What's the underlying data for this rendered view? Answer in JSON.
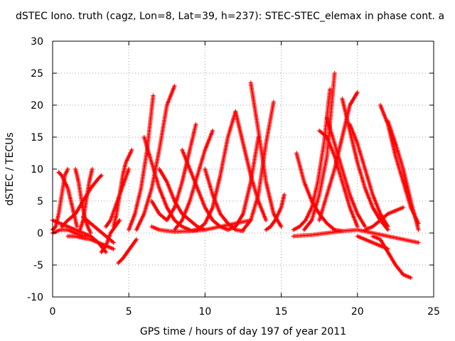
{
  "chart_data": {
    "type": "scatter",
    "title": "dSTEC Iono. truth (cagz, Lon=8, Lat=39, h=237): STEC-STEC_elemax in phase cont. a",
    "xlabel": "GPS time / hours of day 197 of year 2011",
    "ylabel": "dSTEC  / TECUs",
    "xlim": [
      0,
      25
    ],
    "ylim": [
      -10,
      30
    ],
    "xticks": [
      0,
      5,
      10,
      15,
      20,
      25
    ],
    "yticks": [
      -10,
      -5,
      0,
      5,
      10,
      15,
      20,
      25,
      30
    ],
    "grid": true,
    "marker": "plus",
    "color": "#ff0000",
    "series": [
      {
        "x": [
          0.0,
          0.2,
          0.4,
          0.6,
          0.8,
          1.0
        ],
        "y": [
          0.5,
          1.0,
          3.0,
          6.0,
          9.0,
          10.0
        ]
      },
      {
        "x": [
          0.4,
          0.6,
          0.8,
          1.0,
          1.2,
          1.4,
          1.6
        ],
        "y": [
          9.5,
          9.0,
          8.0,
          7.0,
          5.0,
          3.0,
          1.0
        ]
      },
      {
        "x": [
          1.5,
          1.7,
          1.9,
          2.1,
          2.3,
          2.5
        ],
        "y": [
          10.0,
          8.0,
          5.0,
          2.5,
          1.0,
          0.0
        ]
      },
      {
        "x": [
          1.8,
          2.0,
          2.2,
          2.4,
          2.6
        ],
        "y": [
          0.5,
          2.0,
          5.0,
          8.0,
          10.0
        ]
      },
      {
        "x": [
          0.6,
          1.0,
          1.5,
          2.0,
          2.5,
          3.0,
          3.2
        ],
        "y": [
          1.0,
          2.0,
          3.0,
          5.0,
          7.0,
          8.5,
          9.0
        ]
      },
      {
        "x": [
          0.0,
          0.5,
          1.0,
          1.5,
          2.0,
          2.5,
          3.0,
          3.5
        ],
        "y": [
          2.0,
          1.5,
          1.0,
          0.5,
          0.0,
          -0.5,
          -1.5,
          -3.0
        ]
      },
      {
        "x": [
          0.0,
          0.5,
          1.0,
          1.5,
          2.0,
          2.5
        ],
        "y": [
          0.0,
          0.5,
          0.5,
          0.0,
          -0.5,
          -0.5
        ]
      },
      {
        "x": [
          1.0,
          1.5,
          2.0,
          2.5,
          3.0,
          3.5,
          4.0
        ],
        "y": [
          -0.5,
          -0.5,
          -0.8,
          -1.0,
          -1.5,
          -2.0,
          -2.5
        ]
      },
      {
        "x": [
          2.0,
          2.5,
          3.0,
          3.5,
          4.0
        ],
        "y": [
          2.5,
          1.5,
          0.5,
          -0.5,
          -1.5
        ]
      },
      {
        "x": [
          3.2,
          3.5,
          3.8,
          4.1,
          4.4
        ],
        "y": [
          -3.0,
          -2.0,
          0.0,
          1.0,
          2.0
        ]
      },
      {
        "x": [
          3.5,
          3.8,
          4.1,
          4.4,
          4.7,
          5.0
        ],
        "y": [
          1.0,
          2.0,
          4.0,
          6.0,
          8.0,
          10.0
        ]
      },
      {
        "x": [
          4.3,
          4.6,
          4.9,
          5.2,
          5.5
        ],
        "y": [
          -4.7,
          -4.0,
          -3.0,
          -2.0,
          -1.0
        ]
      },
      {
        "x": [
          4.0,
          4.2,
          4.4,
          4.6,
          4.8,
          5.0,
          5.2
        ],
        "y": [
          1.0,
          3.0,
          6.0,
          9.0,
          11.0,
          12.0,
          13.0
        ]
      },
      {
        "x": [
          5.0,
          5.4,
          5.8,
          6.2,
          6.6
        ],
        "y": [
          0.5,
          3.0,
          7.0,
          13.0,
          21.5
        ]
      },
      {
        "x": [
          5.5,
          6.0,
          6.5,
          7.0,
          7.5,
          8.0
        ],
        "y": [
          0.5,
          3.0,
          7.0,
          13.0,
          20.0,
          23.0
        ]
      },
      {
        "x": [
          6.0,
          6.5,
          7.0,
          7.5,
          8.0,
          8.5,
          9.0
        ],
        "y": [
          15.0,
          11.0,
          7.0,
          4.0,
          2.0,
          1.0,
          0.5
        ]
      },
      {
        "x": [
          6.5,
          7.0,
          7.5,
          8.0,
          8.5,
          9.0,
          9.4
        ],
        "y": [
          5.0,
          3.0,
          2.0,
          4.0,
          8.0,
          13.0,
          17.0
        ]
      },
      {
        "x": [
          7.0,
          7.5,
          8.0,
          8.5,
          9.0,
          9.5,
          10.0
        ],
        "y": [
          10.0,
          8.0,
          5.0,
          3.0,
          2.0,
          1.0,
          0.5
        ]
      },
      {
        "x": [
          8.0,
          8.5,
          9.0,
          9.5,
          10.0,
          10.5
        ],
        "y": [
          0.5,
          2.0,
          5.0,
          9.0,
          13.0,
          16.0
        ]
      },
      {
        "x": [
          8.5,
          9.0,
          9.5,
          10.0,
          10.5,
          11.0,
          11.5
        ],
        "y": [
          13.0,
          10.0,
          7.0,
          4.0,
          2.0,
          1.0,
          0.5
        ]
      },
      {
        "x": [
          9.0,
          9.5,
          10.0,
          10.5,
          11.0,
          11.5,
          12.0
        ],
        "y": [
          0.3,
          0.5,
          1.5,
          4.0,
          9.0,
          15.0,
          19.0
        ]
      },
      {
        "x": [
          10.0,
          10.5,
          11.0,
          11.5,
          12.0,
          12.5
        ],
        "y": [
          10.0,
          6.0,
          3.0,
          1.5,
          0.5,
          0.3
        ]
      },
      {
        "x": [
          11.5,
          12.0,
          12.5,
          13.0,
          13.5
        ],
        "y": [
          0.5,
          1.0,
          3.0,
          8.0,
          15.0
        ]
      },
      {
        "x": [
          12.0,
          12.5,
          13.0,
          13.5,
          14.0
        ],
        "y": [
          19.0,
          14.0,
          9.0,
          5.0,
          2.0
        ]
      },
      {
        "x": [
          13.0,
          13.5,
          14.0,
          14.5,
          15.0
        ],
        "y": [
          23.5,
          16.0,
          8.0,
          3.0,
          1.0
        ]
      },
      {
        "x": [
          12.5,
          13.0,
          13.5,
          14.0,
          14.5
        ],
        "y": [
          0.5,
          2.0,
          6.0,
          14.0,
          20.5
        ]
      },
      {
        "x": [
          14.0,
          14.3,
          14.6,
          15.0,
          15.2
        ],
        "y": [
          0.5,
          1.0,
          2.0,
          4.0,
          6.0
        ]
      },
      {
        "x": [
          6.5,
          7.0,
          8.0,
          9.0,
          10.0,
          11.0,
          12.0,
          13.0
        ],
        "y": [
          1.0,
          0.5,
          0.2,
          0.3,
          0.5,
          1.0,
          1.5,
          2.0
        ]
      },
      {
        "x": [
          15.8,
          16.2,
          16.6,
          17.0,
          17.4,
          17.8,
          18.2
        ],
        "y": [
          0.5,
          1.0,
          2.0,
          4.0,
          8.0,
          14.0,
          22.5
        ]
      },
      {
        "x": [
          16.0,
          16.5,
          17.0,
          17.5,
          18.0,
          18.5,
          19.0
        ],
        "y": [
          12.5,
          8.0,
          5.0,
          3.0,
          1.5,
          0.5,
          0.3
        ]
      },
      {
        "x": [
          16.5,
          17.0,
          17.5,
          18.0,
          18.5
        ],
        "y": [
          0.5,
          2.0,
          6.0,
          12.0,
          25.0
        ]
      },
      {
        "x": [
          17.5,
          18.0,
          18.5,
          19.0,
          19.5,
          20.0
        ],
        "y": [
          16.0,
          15.0,
          12.0,
          8.0,
          4.0,
          1.0
        ]
      },
      {
        "x": [
          18.0,
          18.5,
          19.0,
          19.5,
          20.0,
          20.5
        ],
        "y": [
          18.0,
          14.0,
          10.0,
          6.0,
          3.0,
          1.0
        ]
      },
      {
        "x": [
          17.5,
          18.0,
          18.5,
          19.0,
          19.5,
          20.0
        ],
        "y": [
          2.0,
          6.0,
          10.0,
          15.0,
          20.0,
          22.0
        ]
      },
      {
        "x": [
          19.0,
          19.5,
          20.0,
          20.5,
          21.0,
          21.5,
          22.0
        ],
        "y": [
          21.0,
          16.0,
          11.0,
          7.0,
          4.0,
          2.0,
          0.5
        ]
      },
      {
        "x": [
          19.5,
          20.0,
          20.5,
          21.0,
          21.5,
          22.0
        ],
        "y": [
          17.0,
          14.0,
          10.0,
          6.0,
          3.0,
          1.0
        ]
      },
      {
        "x": [
          20.5,
          21.0,
          21.5,
          22.0,
          22.5,
          23.0
        ],
        "y": [
          0.5,
          1.0,
          2.0,
          3.0,
          3.5,
          4.0
        ]
      },
      {
        "x": [
          21.0,
          21.5,
          22.0,
          22.5,
          23.0,
          23.5
        ],
        "y": [
          -0.5,
          -1.0,
          -3.0,
          -5.0,
          -6.5,
          -7.0
        ]
      },
      {
        "x": [
          21.5,
          22.0,
          22.5,
          23.0,
          23.5,
          24.0
        ],
        "y": [
          20.0,
          17.0,
          12.0,
          8.0,
          4.0,
          1.5
        ]
      },
      {
        "x": [
          22.0,
          22.5,
          23.0,
          23.5,
          24.0
        ],
        "y": [
          17.5,
          14.0,
          10.0,
          5.0,
          0.5
        ]
      },
      {
        "x": [
          20.0,
          20.5,
          21.0,
          21.5,
          22.0
        ],
        "y": [
          -0.5,
          -1.0,
          -1.5,
          -2.0,
          -2.5
        ]
      },
      {
        "x": [
          15.8,
          17.0,
          18.0,
          19.0,
          20.0,
          21.0,
          22.0,
          23.0,
          24.0
        ],
        "y": [
          -0.5,
          -0.3,
          0.0,
          0.3,
          0.5,
          0.0,
          -0.5,
          -1.0,
          -1.5
        ]
      }
    ]
  }
}
